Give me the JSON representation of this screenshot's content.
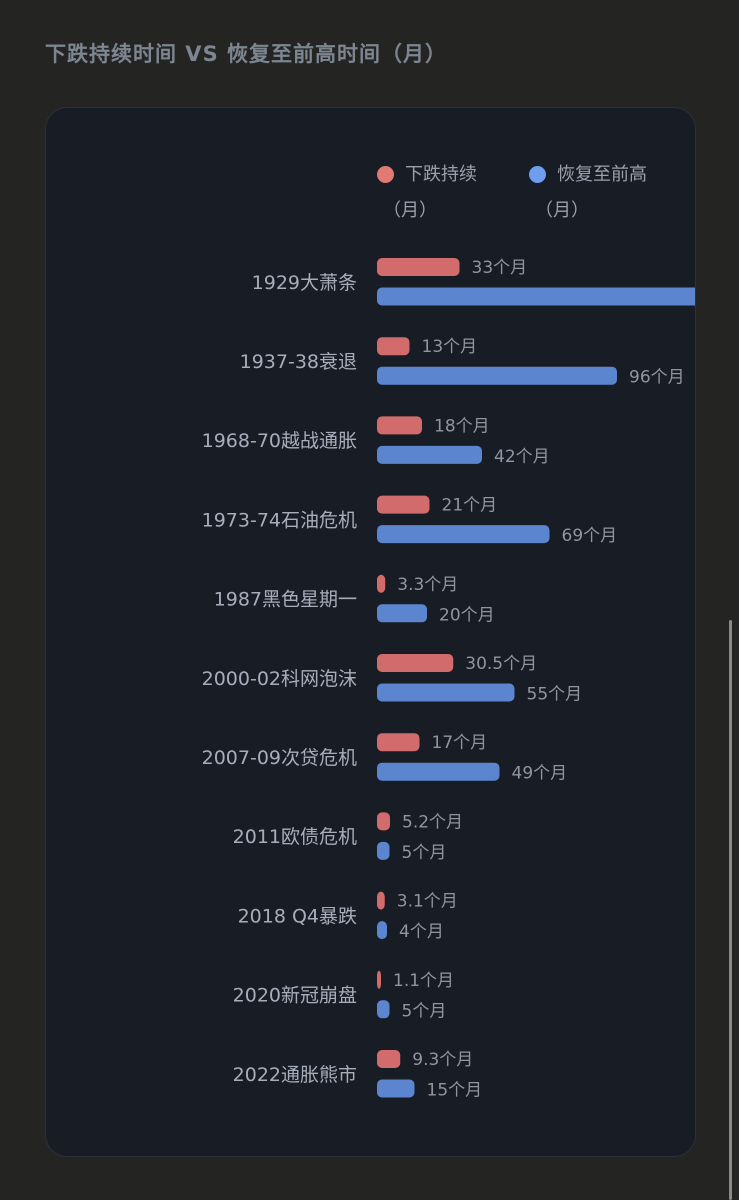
{
  "page": {
    "title": "下跌持续时间 VS 恢复至前高时间（月）"
  },
  "legend": {
    "items": [
      {
        "label_line1": "下跌持续",
        "label_line2": "（月）",
        "color": "#e07a72"
      },
      {
        "label_line1": "恢复至前高",
        "label_line2": "（月）",
        "color": "#6f9df0"
      }
    ]
  },
  "colors": {
    "decline": "#d26b6b",
    "recovery": "#5b86cf",
    "label": "#a7aebb",
    "value": "#8f96a2"
  },
  "chart_data": {
    "type": "bar",
    "orientation": "horizontal",
    "title": "下跌持续时间 VS 恢复至前高时间（月）",
    "categories": [
      "1929大萧条",
      "1937-38衰退",
      "1968-70越战通胀",
      "1973-74石油危机",
      "1987黑色星期一",
      "2000-02科网泡沫",
      "2007-09次贷危机",
      "2011欧债危机",
      "2018 Q4暴跌",
      "2020新冠崩盘",
      "2022通胀熊市"
    ],
    "series": [
      {
        "name": "下跌持续（月）",
        "values": [
          33,
          13,
          18,
          21,
          3.3,
          30.5,
          17,
          5.2,
          3.1,
          1.1,
          9.3
        ],
        "labels": [
          "33个月",
          "13个月",
          "18个月",
          "21个月",
          "3.3个月",
          "30.5个月",
          "17个月",
          "5.2个月",
          "3.1个月",
          "1.1个月",
          "9.3个月"
        ]
      },
      {
        "name": "恢复至前高（月）",
        "values": [
          300,
          96,
          42,
          69,
          20,
          55,
          49,
          5,
          4,
          5,
          15
        ],
        "labels": [
          "",
          "96个月",
          "42个月",
          "69个月",
          "20个月",
          "55个月",
          "49个月",
          "5个月",
          "4个月",
          "5个月",
          "15个月"
        ]
      }
    ],
    "legend_position": "top",
    "grid": false
  }
}
